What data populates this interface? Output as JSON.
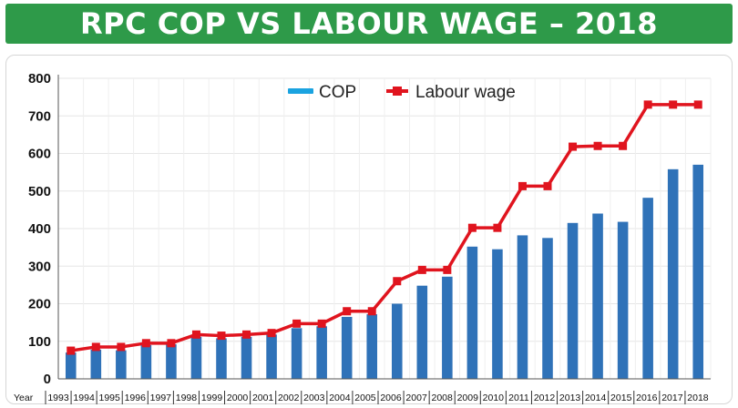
{
  "header": {
    "title": "RPC COP VS LABOUR WAGE – 2018"
  },
  "colors": {
    "banner": "#2e9a49",
    "cop": "#2f72b8",
    "labour": "#e0141e",
    "legend_cop": "#1aa3e0"
  },
  "chart_data": {
    "type": "bar",
    "title": "RPC COP VS LABOUR WAGE – 2018",
    "xlabel": "Year",
    "ylabel": "",
    "ylim": [
      0,
      800
    ],
    "yticks": [
      0,
      100,
      200,
      300,
      400,
      500,
      600,
      700,
      800
    ],
    "grid": true,
    "legend_position": "top-center",
    "categories": [
      "1993",
      "1994",
      "1995",
      "1996",
      "1997",
      "1998",
      "1999",
      "2000",
      "2001",
      "2002",
      "2003",
      "2004",
      "2005",
      "2006",
      "2007",
      "2008",
      "2009",
      "2010",
      "2011",
      "2012",
      "2013",
      "2014",
      "2015",
      "2016",
      "2017",
      "2018"
    ],
    "series": [
      {
        "name": "COP",
        "type": "bar",
        "values": [
          70,
          78,
          76,
          90,
          92,
          112,
          108,
          112,
          118,
          135,
          140,
          165,
          172,
          200,
          248,
          272,
          352,
          345,
          382,
          375,
          415,
          440,
          418,
          482,
          558,
          570
        ]
      },
      {
        "name": "Labour wage",
        "type": "line",
        "values": [
          75,
          85,
          85,
          95,
          95,
          118,
          115,
          118,
          122,
          147,
          147,
          180,
          180,
          260,
          290,
          290,
          402,
          402,
          513,
          513,
          618,
          620,
          620,
          730,
          730,
          730
        ]
      }
    ]
  }
}
